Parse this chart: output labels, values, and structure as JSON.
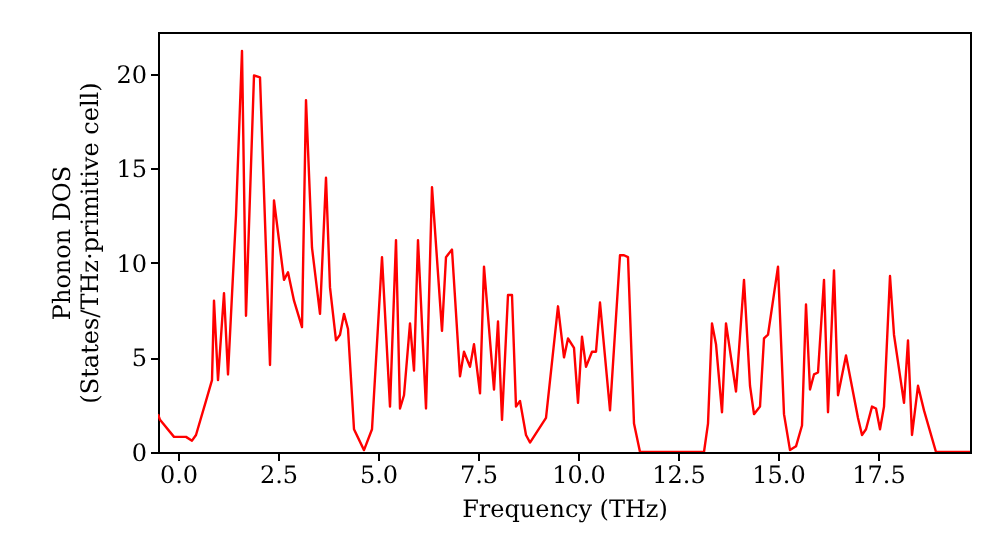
{
  "chart_data": {
    "type": "line",
    "xlabel": "Frequency (THz)",
    "ylabel": "Phonon DOS\n(States/THz·primitive cell)",
    "xlim": [
      -0.5,
      19.8
    ],
    "ylim": [
      0,
      22.2
    ],
    "xticks": [
      {
        "value": 0,
        "label": "0.0"
      },
      2.5,
      {
        "value": 5,
        "label": "5.0"
      },
      7.5,
      {
        "value": 10,
        "label": "10.0"
      },
      12.5,
      {
        "value": 15,
        "label": "15.0"
      },
      17.5
    ],
    "yticks": [
      0,
      5,
      10,
      15,
      20
    ],
    "grid": false,
    "series": [
      {
        "color": "#ff0000",
        "x": [
          -0.5,
          -0.45,
          -0.1,
          0.2,
          0.35,
          0.45,
          0.7,
          0.85,
          0.9,
          1.0,
          1.15,
          1.25,
          1.45,
          1.6,
          1.7,
          1.9,
          2.05,
          2.3,
          2.4,
          2.65,
          2.75,
          2.9,
          3.1,
          3.2,
          3.35,
          3.55,
          3.7,
          3.8,
          3.95,
          4.05,
          4.15,
          4.25,
          4.4,
          4.65,
          4.85,
          5.1,
          5.3,
          5.45,
          5.55,
          5.65,
          5.8,
          5.9,
          6.0,
          6.2,
          6.35,
          6.6,
          6.7,
          6.85,
          7.05,
          7.15,
          7.3,
          7.4,
          7.55,
          7.65,
          7.9,
          8.0,
          8.1,
          8.25,
          8.35,
          8.45,
          8.55,
          8.7,
          8.8,
          9.2,
          9.5,
          9.65,
          9.75,
          9.9,
          10.0,
          10.1,
          10.2,
          10.35,
          10.45,
          10.55,
          10.8,
          11.05,
          11.15,
          11.25,
          11.4,
          11.55,
          13.15,
          13.25,
          13.35,
          13.45,
          13.6,
          13.7,
          13.95,
          14.15,
          14.3,
          14.4,
          14.55,
          14.65,
          14.75,
          15.0,
          15.15,
          15.3,
          15.45,
          15.6,
          15.7,
          15.8,
          15.9,
          16.0,
          16.15,
          16.25,
          16.4,
          16.5,
          16.7,
          17.0,
          17.1,
          17.2,
          17.35,
          17.45,
          17.55,
          17.65,
          17.8,
          17.9,
          18.15,
          18.25,
          18.35,
          18.5,
          18.65,
          18.95,
          19.8
        ],
        "values": [
          2.0,
          1.7,
          0.8,
          0.8,
          0.6,
          0.9,
          2.7,
          3.8,
          8.0,
          3.8,
          8.4,
          4.1,
          12.5,
          21.2,
          7.2,
          19.9,
          19.8,
          4.6,
          13.3,
          9.1,
          9.5,
          8.0,
          6.6,
          18.6,
          10.8,
          7.3,
          14.5,
          8.7,
          5.9,
          6.2,
          7.3,
          6.5,
          1.2,
          0.1,
          1.2,
          10.3,
          2.4,
          11.2,
          2.3,
          3.0,
          6.8,
          4.3,
          11.2,
          2.3,
          14.0,
          6.4,
          10.3,
          10.7,
          4.0,
          5.3,
          4.5,
          5.7,
          3.1,
          9.8,
          3.3,
          6.9,
          1.7,
          8.3,
          8.3,
          2.4,
          2.7,
          0.9,
          0.5,
          1.8,
          7.7,
          5.0,
          6.0,
          5.5,
          2.6,
          6.1,
          4.5,
          5.3,
          5.3,
          7.9,
          2.2,
          10.4,
          10.4,
          10.3,
          1.5,
          0,
          0,
          1.5,
          6.8,
          5.7,
          2.1,
          6.8,
          3.2,
          9.1,
          3.5,
          2.0,
          2.4,
          6.0,
          6.2,
          9.8,
          2.0,
          0.1,
          0.3,
          1.4,
          7.8,
          3.3,
          4.1,
          4.2,
          9.1,
          2.1,
          9.6,
          3.0,
          5.1,
          1.8,
          0.9,
          1.2,
          2.4,
          2.3,
          1.2,
          2.4,
          9.3,
          6.2,
          2.6,
          5.9,
          0.9,
          3.5,
          2.2,
          0,
          0
        ]
      }
    ]
  }
}
